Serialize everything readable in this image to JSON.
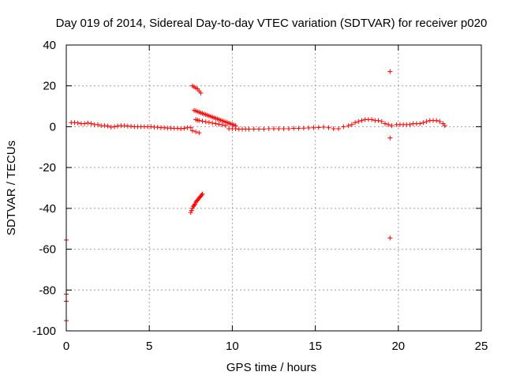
{
  "chart_data": {
    "type": "scatter",
    "title": "Day 019 of 2014, Sidereal Day-to-day VTEC variation (SDTVAR) for receiver p020",
    "xlabel": "GPS time / hours",
    "ylabel": "SDTVAR / TECUs",
    "xlim": [
      0,
      25
    ],
    "ylim": [
      -100,
      40
    ],
    "xticks": [
      0,
      5,
      10,
      15,
      20,
      25
    ],
    "yticks": [
      -100,
      -80,
      -60,
      -40,
      -20,
      0,
      20,
      40
    ],
    "grid": true,
    "marker": "+",
    "color": "#ff0000",
    "series": [
      {
        "name": "SDTVAR",
        "x": [
          0.3,
          0.5,
          0.7,
          0.9,
          1.1,
          1.3,
          1.5,
          1.7,
          1.9,
          2.1,
          2.3,
          2.5,
          2.7,
          2.9,
          3.1,
          3.3,
          3.5,
          3.7,
          3.9,
          4.1,
          4.3,
          4.5,
          4.7,
          4.9,
          5.1,
          5.3,
          5.5,
          5.7,
          5.9,
          6.1,
          6.3,
          6.5,
          6.7,
          6.9,
          7.1,
          7.3,
          7.5,
          7.7,
          7.8,
          7.9,
          8.0,
          8.1,
          8.2,
          8.3,
          8.4,
          8.5,
          8.6,
          8.7,
          8.8,
          8.9,
          9.0,
          9.1,
          9.2,
          9.3,
          9.4,
          9.5,
          9.6,
          9.7,
          9.8,
          9.9,
          10.0,
          10.1,
          10.2,
          7.8,
          7.9,
          8.0,
          8.2,
          8.4,
          8.6,
          8.8,
          9.0,
          9.2,
          9.4,
          9.6,
          7.6,
          7.7,
          7.8,
          7.9,
          8.0,
          8.1,
          7.5,
          7.55,
          7.6,
          7.65,
          7.7,
          7.75,
          7.8,
          7.85,
          7.9,
          7.95,
          8.0,
          8.05,
          8.1,
          8.15,
          8.2,
          7.6,
          7.8,
          8.0,
          9.8,
          10.0,
          10.2,
          10.4,
          10.6,
          10.8,
          11.0,
          11.3,
          11.6,
          11.9,
          12.2,
          12.5,
          12.8,
          13.1,
          13.4,
          13.7,
          14.0,
          14.3,
          14.6,
          14.9,
          15.2,
          15.5,
          15.8,
          16.1,
          16.4,
          16.7,
          17.0,
          17.2,
          17.4,
          17.6,
          17.8,
          18.0,
          18.2,
          18.4,
          18.6,
          18.8,
          19.0,
          19.2,
          19.4,
          19.6,
          19.9,
          20.1,
          20.3,
          20.5,
          20.7,
          20.9,
          21.1,
          21.3,
          21.5,
          21.7,
          21.9,
          22.1,
          22.3,
          22.5,
          22.7,
          22.8,
          0.0,
          0.0,
          0.0,
          0.0,
          19.5,
          19.5,
          19.5
        ],
        "y": [
          2,
          2,
          1.8,
          1.5,
          1.5,
          1.8,
          1.5,
          1,
          1,
          0.5,
          0.5,
          0.3,
          -0.2,
          0,
          0.3,
          0.5,
          0.5,
          0.3,
          0.2,
          0,
          0,
          0,
          0,
          0,
          0,
          -0.2,
          -0.3,
          -0.5,
          -0.5,
          -0.7,
          -0.7,
          -0.8,
          -0.8,
          -1,
          -0.8,
          -0.5,
          -0.5,
          8,
          7.7,
          7.4,
          7.1,
          6.8,
          6.5,
          6.2,
          5.9,
          5.6,
          5.3,
          5,
          4.7,
          4.4,
          4.1,
          3.8,
          3.5,
          3.2,
          2.9,
          2.6,
          2.3,
          2,
          1.7,
          1.4,
          1.1,
          0.8,
          0.5,
          3.5,
          3.2,
          3,
          2.7,
          2.4,
          2.1,
          1.8,
          1.5,
          1.2,
          0.9,
          0.6,
          20,
          19.5,
          19,
          18.5,
          17.5,
          16.5,
          -42,
          -41,
          -40,
          -39,
          -38.5,
          -38,
          -37,
          -36.5,
          -36,
          -35.5,
          -35,
          -34.5,
          -34,
          -33.5,
          -33,
          -2,
          -2.5,
          -3,
          -1,
          -1,
          -1,
          -1.2,
          -1.2,
          -1.2,
          -1.2,
          -1.2,
          -1.2,
          -1.2,
          -1,
          -1,
          -1,
          -1,
          -1,
          -0.8,
          -0.8,
          -0.7,
          -0.6,
          -0.5,
          -0.4,
          -0.2,
          -0.5,
          -1,
          -1,
          0,
          0.5,
          1,
          2,
          2.5,
          3,
          3.5,
          3.5,
          3.5,
          3,
          3,
          2.5,
          1.5,
          1,
          0.5,
          1,
          1,
          1,
          1,
          1,
          1.5,
          1.5,
          1.5,
          2,
          2.5,
          3,
          3,
          3,
          2.5,
          1.5,
          0.5,
          -55.5,
          -82,
          -85.5,
          -95,
          27,
          -5.5,
          -54.5
        ]
      }
    ]
  }
}
